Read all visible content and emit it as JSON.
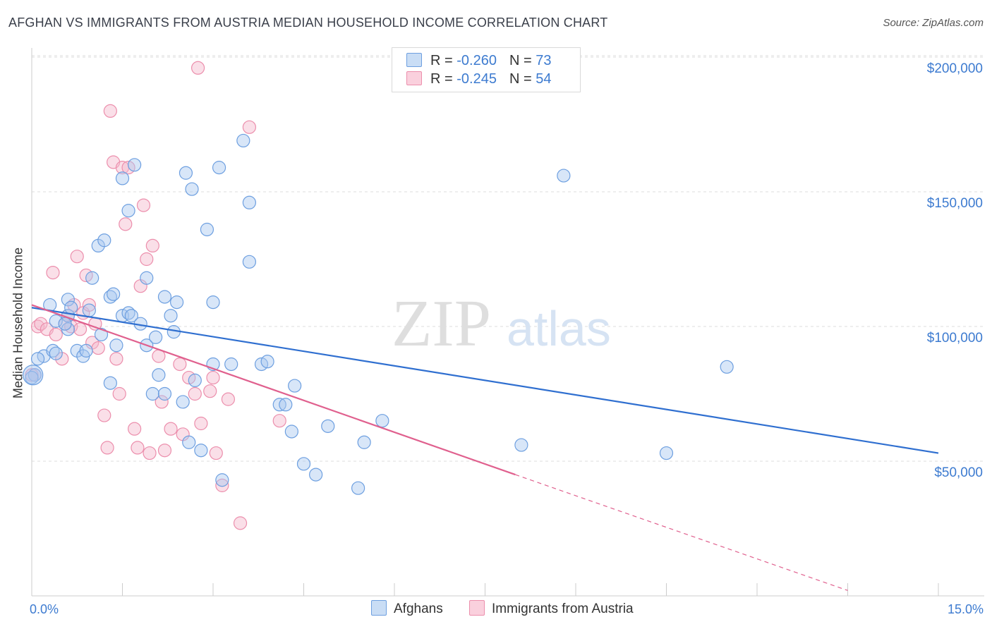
{
  "header": {
    "title": "AFGHAN VS IMMIGRANTS FROM AUSTRIA MEDIAN HOUSEHOLD INCOME CORRELATION CHART",
    "source": "Source: ZipAtlas.com"
  },
  "watermark": {
    "zip": "ZIP",
    "atlas": "atlas"
  },
  "legend_top": {
    "rows": [
      {
        "r_label": "R = ",
        "r_value": "-0.260",
        "n_label": "N = ",
        "n_value": "73"
      },
      {
        "r_label": "R = ",
        "r_value": "-0.245",
        "n_label": "N = ",
        "n_value": "54"
      }
    ]
  },
  "legend_bottom": {
    "series1": "Afghans",
    "series2": "Immigrants from Austria"
  },
  "colors": {
    "blue_fill": "#a9c8f0",
    "blue_stroke": "#6d9fe0",
    "blue_line": "#2f6fd0",
    "pink_fill": "#f5b8cb",
    "pink_stroke": "#ec8eac",
    "pink_line": "#e0608e",
    "axis_text": "#3d7bd0",
    "grid": "#dddddd"
  },
  "chart_data": {
    "type": "scatter",
    "title": "AFGHAN VS IMMIGRANTS FROM AUSTRIA MEDIAN HOUSEHOLD INCOME CORRELATION CHART",
    "xlabel": "",
    "ylabel": "Median Household Income",
    "xlim": [
      0,
      15
    ],
    "ylim": [
      0,
      200000
    ],
    "x_tick_labels": [
      "0.0%",
      "15.0%"
    ],
    "y_tick_labels": [
      "$50,000",
      "$100,000",
      "$150,000",
      "$200,000"
    ],
    "y_ticks": [
      50000,
      100000,
      150000,
      200000
    ],
    "grid": true,
    "series": [
      {
        "name": "Afghans",
        "R": -0.26,
        "N": 73,
        "trend": {
          "x": [
            0,
            15
          ],
          "y": [
            107000,
            53000
          ]
        },
        "points": [
          [
            0.05,
            82000
          ],
          [
            0.2,
            89000
          ],
          [
            0.3,
            108000
          ],
          [
            0.35,
            91000
          ],
          [
            0.4,
            102000
          ],
          [
            0.4,
            90000
          ],
          [
            0.6,
            104000
          ],
          [
            0.6,
            99000
          ],
          [
            0.6,
            110000
          ],
          [
            0.65,
            107000
          ],
          [
            0.75,
            91000
          ],
          [
            0.85,
            89000
          ],
          [
            0.9,
            91000
          ],
          [
            0.95,
            106000
          ],
          [
            1.0,
            118000
          ],
          [
            1.1,
            130000
          ],
          [
            1.15,
            97000
          ],
          [
            1.2,
            132000
          ],
          [
            1.3,
            79000
          ],
          [
            1.3,
            111000
          ],
          [
            1.35,
            112000
          ],
          [
            1.4,
            93000
          ],
          [
            1.5,
            155000
          ],
          [
            1.5,
            104000
          ],
          [
            1.6,
            143000
          ],
          [
            1.6,
            105000
          ],
          [
            1.65,
            104000
          ],
          [
            1.7,
            160000
          ],
          [
            1.8,
            101000
          ],
          [
            1.9,
            118000
          ],
          [
            1.9,
            93000
          ],
          [
            2.0,
            75000
          ],
          [
            2.05,
            96000
          ],
          [
            2.1,
            82000
          ],
          [
            2.2,
            111000
          ],
          [
            2.2,
            75000
          ],
          [
            2.3,
            104000
          ],
          [
            2.35,
            98000
          ],
          [
            2.4,
            109000
          ],
          [
            2.5,
            72000
          ],
          [
            2.55,
            157000
          ],
          [
            2.6,
            57000
          ],
          [
            2.65,
            151000
          ],
          [
            2.7,
            80000
          ],
          [
            2.8,
            54000
          ],
          [
            2.9,
            136000
          ],
          [
            3.0,
            86000
          ],
          [
            3.0,
            109000
          ],
          [
            3.1,
            159000
          ],
          [
            3.15,
            43000
          ],
          [
            3.3,
            86000
          ],
          [
            3.5,
            169000
          ],
          [
            3.6,
            146000
          ],
          [
            3.6,
            124000
          ],
          [
            3.8,
            86000
          ],
          [
            3.9,
            87000
          ],
          [
            4.1,
            71000
          ],
          [
            4.2,
            71000
          ],
          [
            4.3,
            61000
          ],
          [
            4.35,
            78000
          ],
          [
            4.5,
            49000
          ],
          [
            4.7,
            45000
          ],
          [
            4.9,
            63000
          ],
          [
            5.4,
            40000
          ],
          [
            5.5,
            57000
          ],
          [
            5.8,
            65000
          ],
          [
            8.1,
            56000
          ],
          [
            8.8,
            156000
          ],
          [
            10.5,
            53000
          ],
          [
            11.5,
            85000
          ],
          [
            0.0,
            81000
          ],
          [
            0.1,
            88000
          ],
          [
            0.55,
            101000
          ]
        ]
      },
      {
        "name": "Immigrants from Austria",
        "R": -0.245,
        "N": 54,
        "trend": {
          "x": [
            0,
            8.0
          ],
          "y": [
            108000,
            45000
          ]
        },
        "trend_dashed": {
          "x": [
            8.0,
            13.5
          ],
          "y": [
            45000,
            2000
          ]
        },
        "points": [
          [
            0.05,
            82000
          ],
          [
            0.1,
            100000
          ],
          [
            0.15,
            101000
          ],
          [
            0.25,
            99000
          ],
          [
            0.35,
            120000
          ],
          [
            0.4,
            97000
          ],
          [
            0.5,
            88000
          ],
          [
            0.55,
            101000
          ],
          [
            0.6,
            104000
          ],
          [
            0.65,
            100000
          ],
          [
            0.7,
            108000
          ],
          [
            0.75,
            126000
          ],
          [
            0.8,
            99000
          ],
          [
            0.85,
            105000
          ],
          [
            0.9,
            119000
          ],
          [
            0.95,
            108000
          ],
          [
            1.0,
            94000
          ],
          [
            1.05,
            101000
          ],
          [
            1.1,
            92000
          ],
          [
            1.2,
            67000
          ],
          [
            1.25,
            55000
          ],
          [
            1.3,
            180000
          ],
          [
            1.35,
            161000
          ],
          [
            1.4,
            88000
          ],
          [
            1.45,
            75000
          ],
          [
            1.5,
            159000
          ],
          [
            1.55,
            138000
          ],
          [
            1.6,
            159000
          ],
          [
            1.7,
            62000
          ],
          [
            1.75,
            55000
          ],
          [
            1.8,
            115000
          ],
          [
            1.85,
            145000
          ],
          [
            1.9,
            125000
          ],
          [
            1.95,
            53000
          ],
          [
            2.0,
            130000
          ],
          [
            2.1,
            89000
          ],
          [
            2.15,
            72000
          ],
          [
            2.2,
            54000
          ],
          [
            2.3,
            62000
          ],
          [
            2.45,
            86000
          ],
          [
            2.5,
            60000
          ],
          [
            2.6,
            81000
          ],
          [
            2.7,
            75000
          ],
          [
            2.75,
            196000
          ],
          [
            2.8,
            64000
          ],
          [
            2.95,
            76000
          ],
          [
            3.0,
            81000
          ],
          [
            3.05,
            53000
          ],
          [
            3.15,
            41000
          ],
          [
            3.25,
            73000
          ],
          [
            3.45,
            27000
          ],
          [
            3.6,
            174000
          ],
          [
            4.1,
            65000
          ],
          [
            0.0,
            82000
          ]
        ]
      }
    ]
  }
}
